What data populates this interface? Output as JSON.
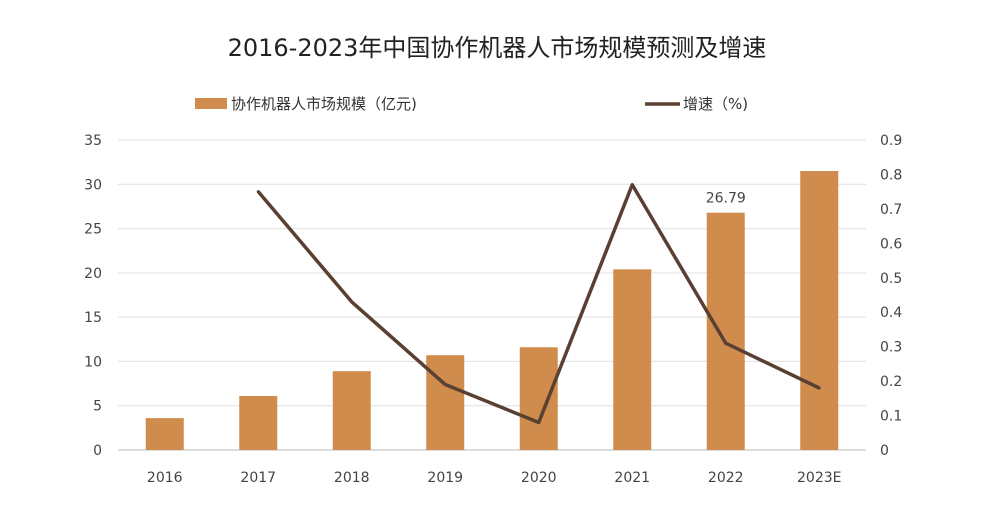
{
  "chart_data": {
    "type": "bar+line",
    "title": "2016-2023年中国协作机器人市场规模预测及增速",
    "categories": [
      "2016",
      "2017",
      "2018",
      "2019",
      "2020",
      "2021",
      "2022",
      "2023E"
    ],
    "series": [
      {
        "name": "协作机器人市场规模（亿元)",
        "type": "bar",
        "axis": "left",
        "color": "#D08C4C",
        "values": [
          3.6,
          6.1,
          8.9,
          10.7,
          11.6,
          20.4,
          26.79,
          31.5
        ]
      },
      {
        "name": "增速（%)",
        "type": "line",
        "axis": "right",
        "color": "#5A4032",
        "values": [
          null,
          0.75,
          0.43,
          0.19,
          0.08,
          0.77,
          0.31,
          0.18
        ]
      }
    ],
    "data_labels": [
      {
        "category": "2022",
        "text": "26.79"
      }
    ],
    "ylim_left": [
      0,
      35
    ],
    "yticks_left": [
      "0",
      "5",
      "10",
      "15",
      "20",
      "25",
      "30",
      "35"
    ],
    "ylim_right": [
      0,
      0.9
    ],
    "yticks_right": [
      "0",
      "0.1",
      "0.2",
      "0.3",
      "0.4",
      "0.5",
      "0.6",
      "0.7",
      "0.8",
      "0.9"
    ],
    "grid": true,
    "legend_placement": "top"
  }
}
